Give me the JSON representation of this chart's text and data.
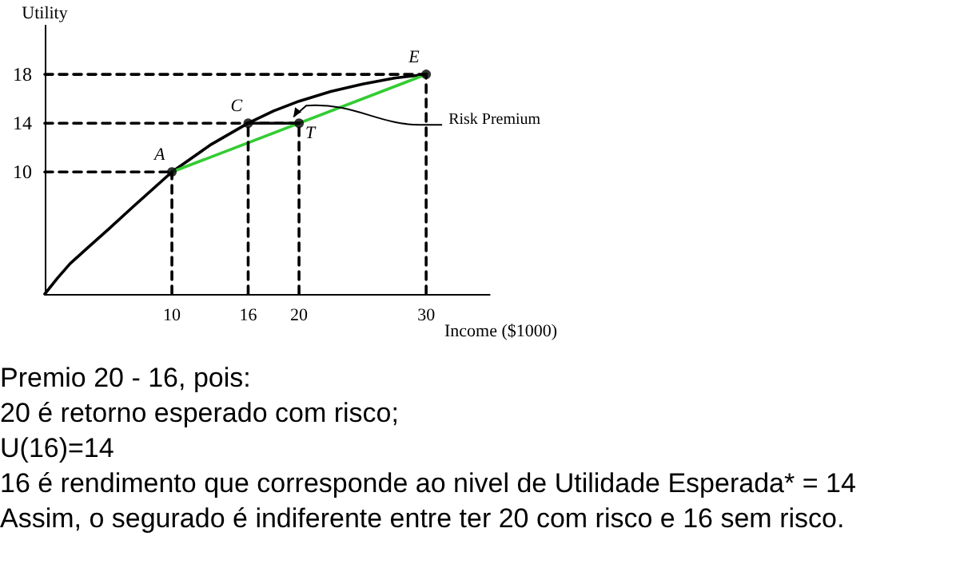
{
  "chart_data": {
    "type": "line",
    "xlabel": "Income ($1000)",
    "ylabel": "Utility",
    "xlim": [
      0,
      35
    ],
    "ylim": [
      0,
      22
    ],
    "xticks": [
      10,
      16,
      20,
      30
    ],
    "yticks": [
      10,
      14,
      18
    ],
    "grid": false,
    "marker": "none",
    "series": [
      {
        "color": "#000000",
        "x": [
          0,
          1,
          2,
          3.5,
          5,
          7,
          10,
          13,
          16,
          18,
          20,
          22.5,
          25,
          27.5,
          30
        ],
        "values": [
          0,
          1.3,
          2.5,
          3.9,
          5.3,
          7.2,
          10,
          12.2,
          14,
          15,
          15.8,
          16.6,
          17.2,
          17.7,
          18
        ]
      },
      {
        "color": "#33cc33",
        "x": [
          10,
          30
        ],
        "values": [
          10,
          18
        ]
      },
      {
        "color": "#000000",
        "x": [
          16,
          20
        ],
        "values": [
          14,
          14
        ]
      },
      {
        "color": "#000000",
        "line_style": "dashed",
        "x": [
          0,
          30
        ],
        "values": [
          18,
          18
        ]
      },
      {
        "color": "#000000",
        "line_style": "dashed",
        "x": [
          0,
          20
        ],
        "values": [
          14,
          14
        ]
      },
      {
        "color": "#000000",
        "line_style": "dashed",
        "x": [
          0,
          10
        ],
        "values": [
          10,
          10
        ]
      },
      {
        "color": "#000000",
        "line_style": "dashed",
        "x": [
          10,
          10
        ],
        "values": [
          0,
          10
        ]
      },
      {
        "color": "#000000",
        "line_style": "dashed",
        "x": [
          16,
          16
        ],
        "values": [
          0,
          14
        ]
      },
      {
        "color": "#000000",
        "line_style": "dashed",
        "x": [
          20,
          20
        ],
        "values": [
          0,
          14
        ]
      },
      {
        "color": "#000000",
        "line_style": "dashed",
        "x": [
          30,
          30
        ],
        "values": [
          0,
          18
        ]
      },
      {
        "type": "scatter",
        "marker": "circle",
        "color": "#000000",
        "x": [
          10,
          16,
          20,
          30
        ],
        "values": [
          10,
          14,
          14,
          18
        ]
      }
    ],
    "annotations": [
      {
        "text": "A",
        "x": 10,
        "y": 10
      },
      {
        "text": "C",
        "x": 16,
        "y": 14
      },
      {
        "text": "T",
        "x": 20,
        "y": 14
      },
      {
        "text": "E",
        "x": 30,
        "y": 18
      },
      {
        "text": "Risk Premium",
        "x": 30,
        "y": 14
      },
      "Premio 20 - 16, pois:",
      "20 é retorno esperado com risco;",
      "U(16)=14",
      "16 é rendimento que corresponde ao nivel de Utilidade Esperada* = 14",
      "Assim, o segurado é indiferente entre ter 20 com risco e 16 sem risco."
    ]
  }
}
